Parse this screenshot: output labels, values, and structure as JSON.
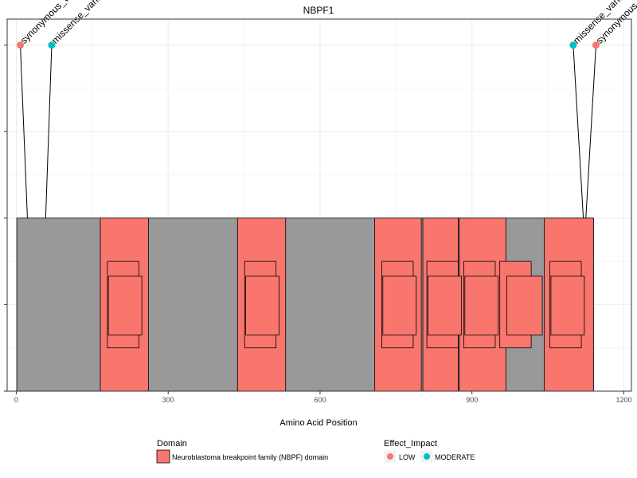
{
  "chart_data": {
    "type": "lollipop",
    "title": "NBPF1",
    "xlabel": "Amino Acid Position",
    "ylabel": "",
    "xlim": [
      -18,
      1215
    ],
    "ylim": [
      0,
      4.3
    ],
    "x_ticks": [
      0,
      300,
      600,
      900,
      1200
    ],
    "x_tick_labels": [
      "0",
      "300",
      "600",
      "900",
      "1200"
    ],
    "grid": true,
    "protein": {
      "start": 1,
      "end": 1140,
      "y_bottom": 0,
      "y_top": 2
    },
    "domains": [
      {
        "name": "Neuroblastoma breakpoint family (NBPF) domain",
        "start": 166,
        "end": 261
      },
      {
        "name": "Neuroblastoma breakpoint family (NBPF) domain",
        "start": 437,
        "end": 532
      },
      {
        "name": "Neuroblastoma breakpoint family (NBPF) domain",
        "start": 708,
        "end": 800
      },
      {
        "name": "Neuroblastoma breakpoint family (NBPF) domain",
        "start": 803,
        "end": 873
      },
      {
        "name": "Neuroblastoma breakpoint family (NBPF) domain",
        "start": 875,
        "end": 967
      },
      {
        "name": "Neuroblastoma breakpoint family (NBPF) domain",
        "start": 1043,
        "end": 1140
      }
    ],
    "subdomains": [
      {
        "start": 180,
        "end": 242,
        "y0": 0.5,
        "y1": 1.5
      },
      {
        "start": 451,
        "end": 513,
        "y0": 0.5,
        "y1": 1.5
      },
      {
        "start": 722,
        "end": 784,
        "y0": 0.5,
        "y1": 1.5
      },
      {
        "start": 811,
        "end": 873,
        "y0": 0.5,
        "y1": 1.5
      },
      {
        "start": 884,
        "end": 946,
        "y0": 0.5,
        "y1": 1.5
      },
      {
        "start": 955,
        "end": 1017,
        "y0": 0.5,
        "y1": 1.5
      },
      {
        "start": 1054,
        "end": 1116,
        "y0": 0.5,
        "y1": 1.5
      },
      {
        "start": 182,
        "end": 248,
        "y0": 0.65,
        "y1": 1.33
      },
      {
        "start": 453,
        "end": 519,
        "y0": 0.65,
        "y1": 1.33
      },
      {
        "start": 724,
        "end": 790,
        "y0": 0.65,
        "y1": 1.33
      },
      {
        "start": 813,
        "end": 879,
        "y0": 0.65,
        "y1": 1.33
      },
      {
        "start": 886,
        "end": 952,
        "y0": 0.65,
        "y1": 1.33
      },
      {
        "start": 969,
        "end": 1039,
        "y0": 0.65,
        "y1": 1.33
      },
      {
        "start": 1056,
        "end": 1122,
        "y0": 0.65,
        "y1": 1.33
      }
    ],
    "variants": [
      {
        "label": "synonymous_variant",
        "position": 22,
        "lollipop_x": 8,
        "y": 4,
        "impact": "LOW"
      },
      {
        "label": "missense_variant",
        "position": 58,
        "lollipop_x": 70,
        "y": 4,
        "impact": "MODERATE"
      },
      {
        "label": "missense_variant",
        "position": 1120,
        "lollipop_x": 1100,
        "y": 4,
        "impact": "MODERATE"
      },
      {
        "label": "synonymous_variant",
        "position": 1125,
        "lollipop_x": 1145,
        "y": 4,
        "impact": "LOW"
      }
    ],
    "colors": {
      "domain": "#F8766D",
      "protein": "#999999",
      "LOW": "#F8766D",
      "MODERATE": "#00BFC4",
      "grid": "#ebebeb",
      "panel_border": "#333333"
    },
    "legend": {
      "placement": "bottom",
      "domain_title": "Domain",
      "domain_items": [
        "Neuroblastoma breakpoint family (NBPF) domain"
      ],
      "impact_title": "Effect_Impact",
      "impact_items": [
        "LOW",
        "MODERATE"
      ]
    }
  }
}
